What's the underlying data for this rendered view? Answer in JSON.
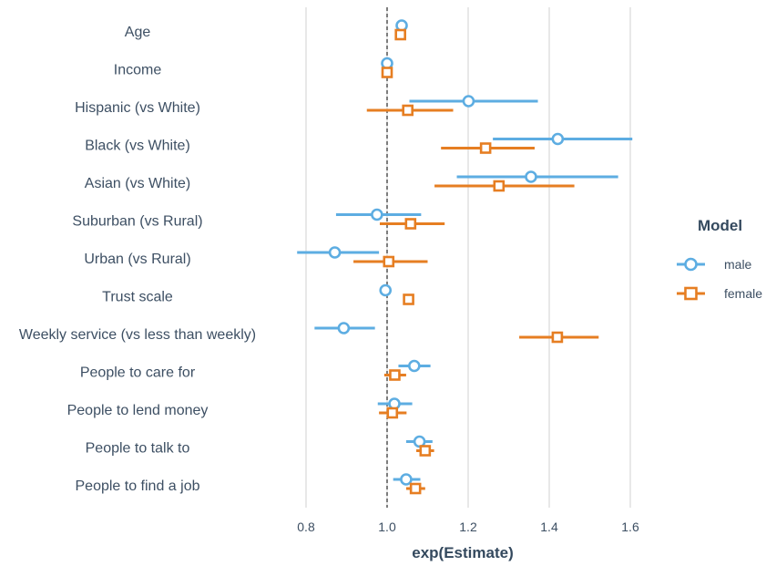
{
  "chart_data": {
    "type": "scatter",
    "subtype": "coefficient-plot",
    "xlabel": "exp(Estimate)",
    "ylabel": "",
    "xlim": [
      0.765,
      1.64
    ],
    "xticks": [
      0.8,
      1.0,
      1.2,
      1.4,
      1.6
    ],
    "xtick_labels": [
      "0.8",
      "1.0",
      "1.2",
      "1.4",
      "1.6"
    ],
    "reference_line": 1.0,
    "grid": "vertical",
    "legend_title": "Model",
    "legend_position": "right",
    "terms": [
      "Age",
      "Income",
      "Hispanic (vs White)",
      "Black (vs White)",
      "Asian (vs White)",
      "Suburban (vs Rural)",
      "Urban (vs Rural)",
      "Trust scale",
      "Weekly service (vs less than weekly)",
      "People to care for",
      "People to lend money",
      "People to talk to",
      "People to find a job"
    ],
    "series": [
      {
        "name": "male",
        "color": "#5dade2",
        "marker": "circle",
        "estimates": [
          1.036,
          1.0,
          1.201,
          1.421,
          1.355,
          0.975,
          0.871,
          0.996,
          0.893,
          1.067,
          1.018,
          1.08,
          1.047
        ],
        "lower": [
          null,
          null,
          1.055,
          1.261,
          1.172,
          0.874,
          0.778,
          null,
          0.821,
          1.028,
          0.977,
          1.047,
          1.015
        ],
        "upper": [
          null,
          null,
          1.372,
          1.605,
          1.57,
          1.084,
          0.98,
          null,
          0.97,
          1.107,
          1.062,
          1.112,
          1.082
        ]
      },
      {
        "name": "female",
        "color": "#e67e22",
        "marker": "square",
        "estimates": [
          1.033,
          1.0,
          1.051,
          1.243,
          1.276,
          1.058,
          1.004,
          1.053,
          1.42,
          1.019,
          1.013,
          1.094,
          1.07
        ],
        "lower": [
          null,
          null,
          0.95,
          1.133,
          1.117,
          0.982,
          0.917,
          null,
          1.326,
          0.993,
          0.98,
          1.072,
          1.047
        ],
        "upper": [
          null,
          null,
          1.163,
          1.364,
          1.462,
          1.142,
          1.1,
          null,
          1.522,
          1.047,
          1.048,
          1.116,
          1.094
        ]
      }
    ]
  }
}
